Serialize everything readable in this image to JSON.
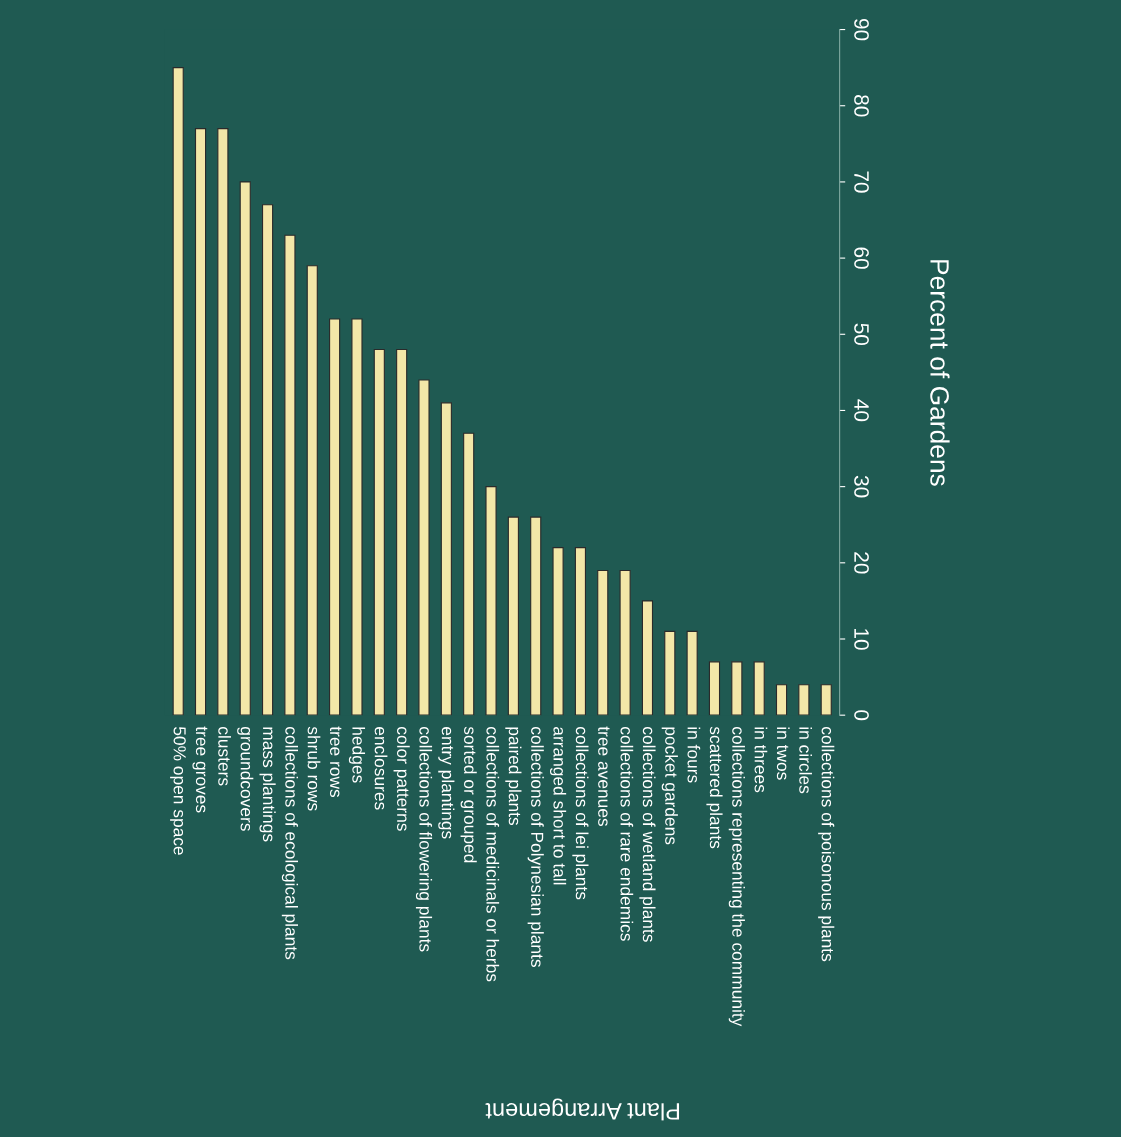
{
  "chart_data": {
    "type": "bar",
    "xlabel": "Plant Arrangement",
    "ylabel": "Percent of Gardens",
    "categories": [
      "50% open space",
      "tree groves",
      "clusters",
      "groundcovers",
      "mass plantings",
      "collections of ecological plants",
      "shrub rows",
      "tree rows",
      "hedges",
      "enclosures",
      "color patterns",
      "collections of flowering plants",
      "entry plantings",
      "sorted or grouped",
      "collections of medicinals or herbs",
      "paired plants",
      "collections of Polynesian plants",
      "arranged short to tall",
      "collections of lei plants",
      "tree avenues",
      "collections of rare endemics",
      "collections of wetland plants",
      "pocket gardens",
      "in fours",
      "scattered plants",
      "collections representing the community",
      "in threes",
      "in twos",
      "in circles",
      "collections of poisonous plants"
    ],
    "values": [
      85,
      77,
      77,
      70,
      67,
      63,
      59,
      52,
      52,
      48,
      48,
      44,
      41,
      37,
      30,
      26,
      26,
      22,
      22,
      19,
      19,
      15,
      11,
      11,
      7,
      7,
      7,
      4,
      4,
      4
    ],
    "color": "#f3e7a8",
    "ylim": [
      0,
      90
    ],
    "yticks": [
      0,
      10,
      20,
      30,
      40,
      50,
      60,
      70,
      80,
      90
    ],
    "grid": false,
    "legend": false
  }
}
